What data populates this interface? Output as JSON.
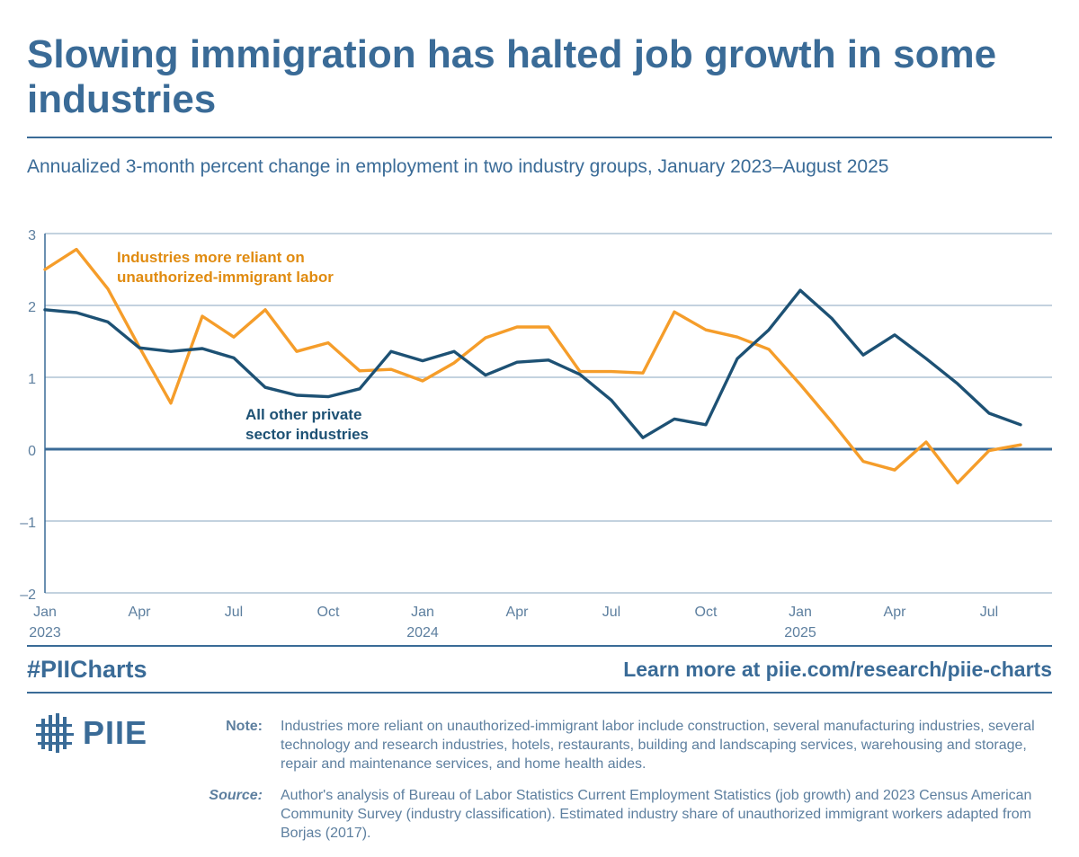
{
  "header": {
    "title": "Slowing immigration has halted job growth in some industries",
    "subtitle": "Annualized 3-month percent change in employment in two industry groups, January 2023–August 2025"
  },
  "chart_data": {
    "type": "line",
    "title": "",
    "xlabel": "",
    "ylabel": "",
    "ylim": [
      -2,
      3
    ],
    "yticks": [
      "3",
      "2",
      "1",
      "0",
      "–1",
      "–2"
    ],
    "grid": true,
    "x_labels": [
      {
        "month": "Jan",
        "year": "2023"
      },
      {
        "month": "Apr",
        "year": ""
      },
      {
        "month": "Jul",
        "year": ""
      },
      {
        "month": "Oct",
        "year": ""
      },
      {
        "month": "Jan",
        "year": "2024"
      },
      {
        "month": "Apr",
        "year": ""
      },
      {
        "month": "Jul",
        "year": ""
      },
      {
        "month": "Oct",
        "year": ""
      },
      {
        "month": "Jan",
        "year": "2025"
      },
      {
        "month": "Apr",
        "year": ""
      },
      {
        "month": "Jul",
        "year": ""
      }
    ],
    "x": [
      "2023-01",
      "2023-02",
      "2023-03",
      "2023-04",
      "2023-05",
      "2023-06",
      "2023-07",
      "2023-08",
      "2023-09",
      "2023-10",
      "2023-11",
      "2023-12",
      "2024-01",
      "2024-02",
      "2024-03",
      "2024-04",
      "2024-05",
      "2024-06",
      "2024-07",
      "2024-08",
      "2024-09",
      "2024-10",
      "2024-11",
      "2024-12",
      "2025-01",
      "2025-02",
      "2025-03",
      "2025-04",
      "2025-05",
      "2025-06",
      "2025-07",
      "2025-08"
    ],
    "series": [
      {
        "name": "Industries more reliant on unauthorized-immigrant labor",
        "color": "#f59d2a",
        "values": [
          2.5,
          2.78,
          2.23,
          1.42,
          0.64,
          1.85,
          1.56,
          1.94,
          1.36,
          1.48,
          1.09,
          1.11,
          0.95,
          1.2,
          1.55,
          1.7,
          1.7,
          1.08,
          1.08,
          1.06,
          1.91,
          1.66,
          1.56,
          1.39,
          0.9,
          0.38,
          -0.17,
          -0.29,
          0.1,
          -0.47,
          -0.02,
          0.06
        ]
      },
      {
        "name": "All other private sector industries",
        "color": "#1d5174",
        "values": [
          1.94,
          1.9,
          1.77,
          1.41,
          1.36,
          1.4,
          1.27,
          0.86,
          0.75,
          0.73,
          0.84,
          1.36,
          1.23,
          1.36,
          1.03,
          1.21,
          1.24,
          1.04,
          0.68,
          0.16,
          0.42,
          0.34,
          1.26,
          1.66,
          2.21,
          1.82,
          1.31,
          1.59,
          1.26,
          0.91,
          0.5,
          0.34
        ]
      }
    ],
    "annotations": [
      {
        "lines": [
          "Industries more reliant on",
          "unauthorized-immigrant labor"
        ],
        "color": "#e08b10"
      },
      {
        "lines": [
          "All other private",
          "sector industries"
        ],
        "color": "#1d5174"
      }
    ]
  },
  "footer": {
    "hashtag": "#PIICharts",
    "learn_more": "Learn more at piie.com/research/piie-charts",
    "logo_text": "PIIE"
  },
  "notes": {
    "note_label": "Note:",
    "note_text": "Industries more reliant on unauthorized-immigrant labor include construction, several manufacturing industries, several technology and research industries, hotels, restaurants, building and landscaping services, warehousing and storage, repair and maintenance services, and home health aides.",
    "source_label": "Source:",
    "source_text": "Author's analysis of Bureau of Labor Statistics Current Employment Statistics (job growth) and 2023 Census American Community Survey (industry classification). Estimated industry share of unauthorized immigrant workers adapted from Borjas (2017)."
  }
}
